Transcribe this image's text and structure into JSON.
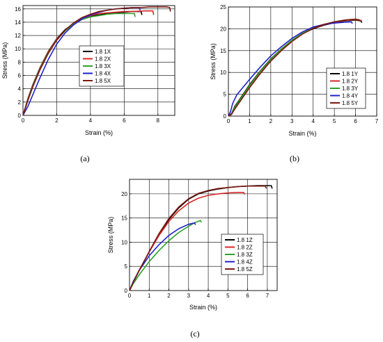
{
  "chart_data": [
    {
      "type": "line",
      "panel_label": "(a)",
      "xlabel": "Strain (%)",
      "ylabel": "Stress (MPa)",
      "xlim": [
        0,
        9
      ],
      "ylim": [
        0,
        16.5
      ],
      "xticks": [
        0,
        2,
        4,
        6,
        8
      ],
      "yticks": [
        0,
        2,
        4,
        6,
        8,
        10,
        12,
        14,
        16
      ],
      "grid": true,
      "legend_position": "center-right",
      "series": [
        {
          "name": "1.8 1X",
          "color": "#000000",
          "points": [
            [
              0,
              0
            ],
            [
              0.3,
              2.6
            ],
            [
              0.6,
              4.7
            ],
            [
              1,
              7.1
            ],
            [
              1.5,
              9.6
            ],
            [
              2,
              11.5
            ],
            [
              2.5,
              12.9
            ],
            [
              3,
              13.8
            ],
            [
              3.5,
              14.5
            ],
            [
              4,
              14.9
            ],
            [
              4.5,
              15.1
            ],
            [
              5,
              15.3
            ],
            [
              5.5,
              15.4
            ],
            [
              6,
              15.5
            ],
            [
              6.5,
              15.6
            ],
            [
              7,
              15.6
            ],
            [
              7.05,
              15.1
            ]
          ]
        },
        {
          "name": "1.8 2X",
          "color": "#d62728",
          "points": [
            [
              0,
              0
            ],
            [
              0.3,
              2.5
            ],
            [
              0.6,
              4.6
            ],
            [
              1,
              7.0
            ],
            [
              1.5,
              9.5
            ],
            [
              2,
              11.4
            ],
            [
              2.5,
              12.8
            ],
            [
              3,
              13.8
            ],
            [
              3.5,
              14.5
            ],
            [
              4,
              15.0
            ],
            [
              4.5,
              15.3
            ],
            [
              5,
              15.4
            ],
            [
              5.5,
              15.5
            ],
            [
              6,
              15.6
            ],
            [
              6.5,
              15.6
            ],
            [
              7.2,
              15.7
            ],
            [
              7.7,
              15.7
            ],
            [
              7.75,
              15.1
            ]
          ]
        },
        {
          "name": "1.8 3X",
          "color": "#2ca02c",
          "points": [
            [
              0,
              0
            ],
            [
              0.3,
              2.4
            ],
            [
              0.6,
              4.5
            ],
            [
              1,
              6.9
            ],
            [
              1.5,
              9.4
            ],
            [
              2,
              11.3
            ],
            [
              2.5,
              12.7
            ],
            [
              3,
              13.7
            ],
            [
              3.5,
              14.4
            ],
            [
              4,
              14.8
            ],
            [
              4.5,
              15.0
            ],
            [
              5,
              15.2
            ],
            [
              5.5,
              15.3
            ],
            [
              6,
              15.3
            ],
            [
              6.6,
              15.3
            ],
            [
              6.65,
              14.8
            ]
          ]
        },
        {
          "name": "1.8 4X",
          "color": "#1f1fcc",
          "points": [
            [
              0,
              0
            ],
            [
              0.3,
              1.4
            ],
            [
              0.6,
              3.2
            ],
            [
              1,
              5.6
            ],
            [
              1.5,
              8.4
            ],
            [
              2,
              10.7
            ],
            [
              2.5,
              12.4
            ],
            [
              3,
              13.6
            ],
            [
              3.5,
              14.5
            ],
            [
              4,
              15.1
            ],
            [
              4.5,
              15.5
            ],
            [
              5,
              15.8
            ],
            [
              5.5,
              16.0
            ],
            [
              6,
              16.1
            ],
            [
              6.5,
              16.2
            ],
            [
              6.9,
              16.2
            ],
            [
              6.95,
              15.8
            ]
          ]
        },
        {
          "name": "1.8 5X",
          "color": "#7a1a12",
          "points": [
            [
              0,
              0
            ],
            [
              0.3,
              2.3
            ],
            [
              0.6,
              4.4
            ],
            [
              1,
              6.8
            ],
            [
              1.5,
              9.3
            ],
            [
              2,
              11.3
            ],
            [
              2.5,
              12.8
            ],
            [
              3,
              13.9
            ],
            [
              3.5,
              14.7
            ],
            [
              4,
              15.2
            ],
            [
              4.5,
              15.6
            ],
            [
              5,
              15.8
            ],
            [
              5.5,
              16.0
            ],
            [
              6,
              16.1
            ],
            [
              6.5,
              16.2
            ],
            [
              7,
              16.2
            ],
            [
              7.5,
              16.3
            ],
            [
              8,
              16.3
            ],
            [
              8.5,
              16.3
            ],
            [
              8.7,
              16.2
            ],
            [
              8.75,
              15.6
            ]
          ]
        }
      ]
    },
    {
      "type": "line",
      "panel_label": "(b)",
      "xlabel": "Strain (%)",
      "ylabel": "Stress (MPa)",
      "xlim": [
        0,
        7
      ],
      "ylim": [
        0,
        25
      ],
      "xticks": [
        0,
        1,
        2,
        3,
        4,
        5,
        6,
        7
      ],
      "yticks": [
        0,
        5,
        10,
        15,
        20,
        25
      ],
      "grid": true,
      "legend_position": "lower-right",
      "series": [
        {
          "name": "1.8 1Y",
          "color": "#000000",
          "points": [
            [
              0,
              0
            ],
            [
              0.15,
              0.6
            ],
            [
              0.3,
              2.2
            ],
            [
              0.5,
              3.6
            ],
            [
              1,
              7.2
            ],
            [
              1.5,
              10.3
            ],
            [
              2,
              13.1
            ],
            [
              2.5,
              15.4
            ],
            [
              3,
              17.3
            ],
            [
              3.5,
              18.9
            ],
            [
              4,
              20.0
            ],
            [
              4.5,
              20.8
            ],
            [
              5,
              21.4
            ],
            [
              5.5,
              21.8
            ],
            [
              6,
              22.0
            ],
            [
              6.25,
              21.8
            ],
            [
              6.3,
              21.4
            ]
          ]
        },
        {
          "name": "1.8 2Y",
          "color": "#d62728",
          "points": [
            [
              0,
              0
            ],
            [
              0.15,
              0.5
            ],
            [
              0.3,
              1.9
            ],
            [
              0.5,
              3.3
            ],
            [
              1,
              6.9
            ],
            [
              1.5,
              10.1
            ],
            [
              2,
              12.9
            ],
            [
              2.5,
              15.3
            ],
            [
              3,
              17.3
            ],
            [
              3.5,
              18.9
            ],
            [
              4,
              20.1
            ],
            [
              4.5,
              20.9
            ],
            [
              5,
              21.5
            ],
            [
              5.5,
              21.9
            ],
            [
              6,
              22.1
            ],
            [
              6.3,
              21.9
            ]
          ]
        },
        {
          "name": "1.8 3Y",
          "color": "#2ca02c",
          "points": [
            [
              0,
              0
            ],
            [
              0.15,
              0.5
            ],
            [
              0.3,
              2.0
            ],
            [
              0.5,
              3.4
            ],
            [
              1,
              7.0
            ],
            [
              1.5,
              10.2
            ],
            [
              2,
              13.0
            ],
            [
              2.5,
              15.4
            ],
            [
              3,
              17.4
            ],
            [
              3.5,
              19.0
            ],
            [
              4,
              20.2
            ],
            [
              4.5,
              21.0
            ],
            [
              5,
              21.6
            ],
            [
              5.5,
              22.0
            ],
            [
              6,
              22.2
            ],
            [
              6.2,
              22.0
            ]
          ]
        },
        {
          "name": "1.8 4Y",
          "color": "#1f1fcc",
          "points": [
            [
              0,
              0
            ],
            [
              0.1,
              1.0
            ],
            [
              0.2,
              2.9
            ],
            [
              0.4,
              4.9
            ],
            [
              1,
              8.4
            ],
            [
              1.5,
              11.2
            ],
            [
              2,
              13.8
            ],
            [
              2.5,
              15.9
            ],
            [
              3,
              17.8
            ],
            [
              3.5,
              19.3
            ],
            [
              4,
              20.4
            ],
            [
              4.5,
              21.0
            ],
            [
              5,
              21.3
            ],
            [
              5.5,
              21.5
            ],
            [
              5.8,
              21.6
            ],
            [
              5.85,
              21.2
            ]
          ]
        },
        {
          "name": "1.8 5Y",
          "color": "#7a1a12",
          "points": [
            [
              0,
              0
            ],
            [
              0.15,
              0.4
            ],
            [
              0.3,
              1.6
            ],
            [
              0.5,
              3.0
            ],
            [
              1,
              6.5
            ],
            [
              1.5,
              9.7
            ],
            [
              2,
              12.6
            ],
            [
              2.5,
              15.0
            ],
            [
              3,
              17.1
            ],
            [
              3.5,
              18.8
            ],
            [
              4,
              20.1
            ],
            [
              4.5,
              21.0
            ],
            [
              5,
              21.6
            ],
            [
              5.5,
              22.0
            ],
            [
              6,
              22.2
            ],
            [
              6.2,
              22.0
            ]
          ]
        }
      ]
    },
    {
      "type": "line",
      "panel_label": "(c)",
      "xlabel": "Strain (%)",
      "ylabel": "Stress (MPa)",
      "xlim": [
        0,
        7.5
      ],
      "ylim": [
        0,
        23
      ],
      "xticks": [
        0,
        1,
        2,
        3,
        4,
        5,
        6,
        7
      ],
      "yticks": [
        0,
        5,
        10,
        15,
        20
      ],
      "grid": true,
      "legend_position": "right",
      "series": [
        {
          "name": "1.8 1Z",
          "color": "#000000",
          "points": [
            [
              0,
              0
            ],
            [
              0.2,
              1.8
            ],
            [
              0.5,
              4.2
            ],
            [
              1,
              8.0
            ],
            [
              1.5,
              11.6
            ],
            [
              2,
              14.7
            ],
            [
              2.5,
              17.1
            ],
            [
              3,
              18.9
            ],
            [
              3.5,
              20.0
            ],
            [
              4,
              20.6
            ],
            [
              4.5,
              21.0
            ],
            [
              5,
              21.3
            ],
            [
              5.5,
              21.5
            ],
            [
              6,
              21.6
            ],
            [
              6.5,
              21.7
            ],
            [
              7,
              21.7
            ],
            [
              7.2,
              21.7
            ],
            [
              7.25,
              21.1
            ]
          ]
        },
        {
          "name": "1.8 2Z",
          "color": "#d62728",
          "points": [
            [
              0,
              0
            ],
            [
              0.2,
              1.9
            ],
            [
              0.5,
              4.3
            ],
            [
              1,
              8.0
            ],
            [
              1.5,
              11.4
            ],
            [
              2,
              14.3
            ],
            [
              2.5,
              16.5
            ],
            [
              3,
              18.1
            ],
            [
              3.5,
              19.1
            ],
            [
              4,
              19.7
            ],
            [
              4.5,
              20.0
            ],
            [
              5,
              20.2
            ],
            [
              5.5,
              20.3
            ],
            [
              5.8,
              20.3
            ],
            [
              5.85,
              19.9
            ]
          ]
        },
        {
          "name": "1.8 3Z",
          "color": "#2ca02c",
          "points": [
            [
              0,
              0
            ],
            [
              0.2,
              1.5
            ],
            [
              0.5,
              3.3
            ],
            [
              1,
              6.0
            ],
            [
              1.5,
              8.3
            ],
            [
              2,
              10.3
            ],
            [
              2.5,
              12.0
            ],
            [
              3,
              13.3
            ],
            [
              3.3,
              14.0
            ],
            [
              3.6,
              14.5
            ],
            [
              3.65,
              14.1
            ]
          ]
        },
        {
          "name": "1.8 4Z",
          "color": "#1f1fcc",
          "points": [
            [
              0,
              0
            ],
            [
              0.2,
              2.0
            ],
            [
              0.5,
              4.2
            ],
            [
              1,
              7.2
            ],
            [
              1.5,
              9.5
            ],
            [
              2,
              11.4
            ],
            [
              2.5,
              12.8
            ],
            [
              3,
              13.7
            ],
            [
              3.3,
              14.0
            ],
            [
              3.35,
              13.6
            ]
          ]
        },
        {
          "name": "1.8 5Z",
          "color": "#7a1a12",
          "points": [
            [
              0,
              0
            ],
            [
              0.2,
              1.8
            ],
            [
              0.5,
              4.2
            ],
            [
              1,
              8.1
            ],
            [
              1.5,
              11.8
            ],
            [
              2,
              14.9
            ],
            [
              2.5,
              17.3
            ],
            [
              3,
              19.0
            ],
            [
              3.5,
              20.1
            ],
            [
              4,
              20.7
            ],
            [
              4.5,
              21.1
            ],
            [
              5,
              21.3
            ],
            [
              5.5,
              21.5
            ],
            [
              6,
              21.6
            ],
            [
              6.5,
              21.6
            ],
            [
              6.9,
              21.6
            ],
            [
              6.95,
              21.1
            ]
          ]
        }
      ]
    }
  ]
}
